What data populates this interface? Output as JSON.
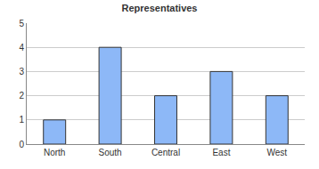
{
  "chart_data": {
    "type": "bar",
    "title": "Representatives",
    "categories": [
      "North",
      "South",
      "Central",
      "East",
      "West"
    ],
    "values": [
      1,
      4,
      2,
      3,
      2
    ],
    "color": "#8db8f7",
    "ylim": [
      0,
      5
    ],
    "yticks": [
      0,
      1,
      2,
      3,
      4,
      5
    ],
    "grid": true
  }
}
